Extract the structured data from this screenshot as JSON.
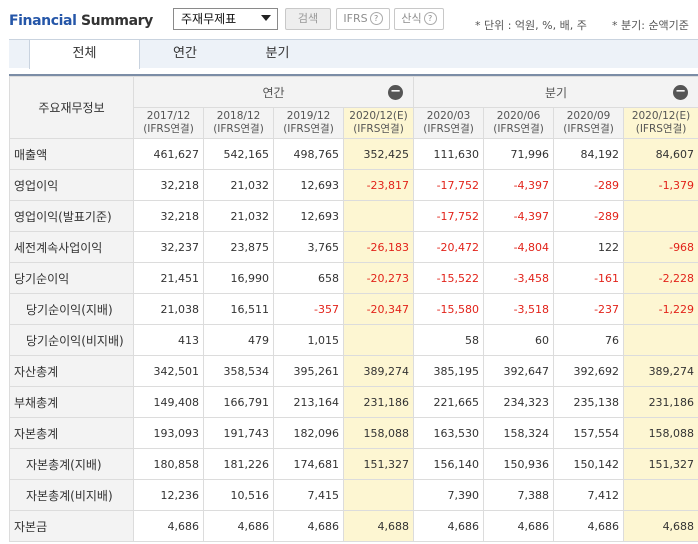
{
  "header": {
    "title_part1": "Financial",
    "title_part2": " Summary",
    "select_value": "주재무제표",
    "search_label": "검색",
    "ifrs_label": "IFRS",
    "calc_label": "산식",
    "help_mark": "?",
    "unit_note": "* 단위 : 억원, %, 배, 주",
    "quarter_note": "* 분기: 순액기준"
  },
  "tabs": [
    "전체",
    "연간",
    "분기"
  ],
  "table": {
    "label_header": "주요재무정보",
    "annual_header": "연간",
    "quarter_header": "분기",
    "collapse_icon": "−",
    "periods": [
      {
        "date": "2017/12",
        "basis": "(IFRS연결)",
        "est": false
      },
      {
        "date": "2018/12",
        "basis": "(IFRS연결)",
        "est": false
      },
      {
        "date": "2019/12",
        "basis": "(IFRS연결)",
        "est": false
      },
      {
        "date": "2020/12(E)",
        "basis": "(IFRS연결)",
        "est": true
      },
      {
        "date": "2020/03",
        "basis": "(IFRS연결)",
        "est": false
      },
      {
        "date": "2020/06",
        "basis": "(IFRS연결)",
        "est": false
      },
      {
        "date": "2020/09",
        "basis": "(IFRS연결)",
        "est": false
      },
      {
        "date": "2020/12(E)",
        "basis": "(IFRS연결)",
        "est": true
      }
    ],
    "rows": [
      {
        "label": "매출액",
        "sub": false,
        "values": [
          "461,627",
          "542,165",
          "498,765",
          "352,425",
          "111,630",
          "71,996",
          "84,192",
          "84,607"
        ]
      },
      {
        "label": "영업이익",
        "sub": false,
        "values": [
          "32,218",
          "21,032",
          "12,693",
          "-23,817",
          "-17,752",
          "-4,397",
          "-289",
          "-1,379"
        ]
      },
      {
        "label": "영업이익(발표기준)",
        "sub": false,
        "values": [
          "32,218",
          "21,032",
          "12,693",
          "",
          "-17,752",
          "-4,397",
          "-289",
          ""
        ]
      },
      {
        "label": "세전계속사업이익",
        "sub": false,
        "values": [
          "32,237",
          "23,875",
          "3,765",
          "-26,183",
          "-20,472",
          "-4,804",
          "122",
          "-968"
        ]
      },
      {
        "label": "당기순이익",
        "sub": false,
        "values": [
          "21,451",
          "16,990",
          "658",
          "-20,273",
          "-15,522",
          "-3,458",
          "-161",
          "-2,228"
        ]
      },
      {
        "label": "당기순이익(지배)",
        "sub": true,
        "values": [
          "21,038",
          "16,511",
          "-357",
          "-20,347",
          "-15,580",
          "-3,518",
          "-237",
          "-1,229"
        ]
      },
      {
        "label": "당기순이익(비지배)",
        "sub": true,
        "values": [
          "413",
          "479",
          "1,015",
          "",
          "58",
          "60",
          "76",
          ""
        ]
      },
      {
        "label": "자산총계",
        "sub": false,
        "values": [
          "342,501",
          "358,534",
          "395,261",
          "389,274",
          "385,195",
          "392,647",
          "392,692",
          "389,274"
        ]
      },
      {
        "label": "부채총계",
        "sub": false,
        "values": [
          "149,408",
          "166,791",
          "213,164",
          "231,186",
          "221,665",
          "234,323",
          "235,138",
          "231,186"
        ]
      },
      {
        "label": "자본총계",
        "sub": false,
        "values": [
          "193,093",
          "191,743",
          "182,096",
          "158,088",
          "163,530",
          "158,324",
          "157,554",
          "158,088"
        ]
      },
      {
        "label": "자본총계(지배)",
        "sub": true,
        "values": [
          "180,858",
          "181,226",
          "174,681",
          "151,327",
          "156,140",
          "150,936",
          "150,142",
          "151,327"
        ]
      },
      {
        "label": "자본총계(비지배)",
        "sub": true,
        "values": [
          "12,236",
          "10,516",
          "7,415",
          "",
          "7,390",
          "7,388",
          "7,412",
          ""
        ]
      },
      {
        "label": "자본금",
        "sub": false,
        "values": [
          "4,686",
          "4,686",
          "4,686",
          "4,688",
          "4,686",
          "4,686",
          "4,686",
          "4,688"
        ]
      }
    ],
    "colors": {
      "estimate_bg": "#fdf6d2",
      "negative_text": "#e2231a",
      "header_border": "#7b8da6"
    }
  }
}
